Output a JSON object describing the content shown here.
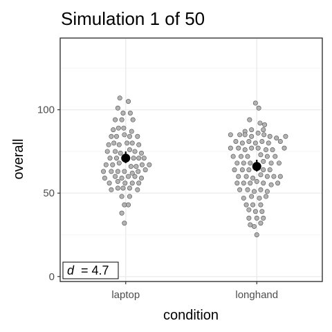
{
  "chart_data": {
    "type": "scatter",
    "title": "Simulation 1 of 50",
    "xlabel": "condition",
    "ylabel": "overall",
    "categories": [
      "laptop",
      "longhand"
    ],
    "ylim": [
      -3,
      143
    ],
    "yticks": [
      0,
      50,
      100
    ],
    "grid": true,
    "series": [
      {
        "category": "laptop",
        "mean": 71,
        "mean_low": 68,
        "mean_high": 75,
        "points": [
          {
            "dx": -0.09,
            "y": 107
          },
          {
            "dx": 0.04,
            "y": 105
          },
          {
            "dx": -0.12,
            "y": 101
          },
          {
            "dx": -0.04,
            "y": 98
          },
          {
            "dx": 0.07,
            "y": 98
          },
          {
            "dx": -0.16,
            "y": 94
          },
          {
            "dx": -0.06,
            "y": 94
          },
          {
            "dx": 0.11,
            "y": 94
          },
          {
            "dx": -0.19,
            "y": 88
          },
          {
            "dx": -0.11,
            "y": 89
          },
          {
            "dx": -0.03,
            "y": 89
          },
          {
            "dx": 0.09,
            "y": 87
          },
          {
            "dx": -0.22,
            "y": 84
          },
          {
            "dx": -0.14,
            "y": 84
          },
          {
            "dx": -0.02,
            "y": 85
          },
          {
            "dx": 0.06,
            "y": 84
          },
          {
            "dx": 0.18,
            "y": 84
          },
          {
            "dx": -0.26,
            "y": 79
          },
          {
            "dx": -0.18,
            "y": 80
          },
          {
            "dx": -0.1,
            "y": 79
          },
          {
            "dx": 0.02,
            "y": 80
          },
          {
            "dx": 0.1,
            "y": 80
          },
          {
            "dx": 0.2,
            "y": 79
          },
          {
            "dx": -0.28,
            "y": 75
          },
          {
            "dx": -0.16,
            "y": 75
          },
          {
            "dx": -0.08,
            "y": 74
          },
          {
            "dx": 0.06,
            "y": 76
          },
          {
            "dx": 0.14,
            "y": 75
          },
          {
            "dx": 0.24,
            "y": 74
          },
          {
            "dx": -0.24,
            "y": 71
          },
          {
            "dx": -0.14,
            "y": 71
          },
          {
            "dx": 0.12,
            "y": 71
          },
          {
            "dx": 0.2,
            "y": 71
          },
          {
            "dx": 0.28,
            "y": 71
          },
          {
            "dx": -0.3,
            "y": 67
          },
          {
            "dx": -0.2,
            "y": 67
          },
          {
            "dx": -0.1,
            "y": 68
          },
          {
            "dx": 0.08,
            "y": 66
          },
          {
            "dx": 0.16,
            "y": 66
          },
          {
            "dx": 0.25,
            "y": 67
          },
          {
            "dx": 0.36,
            "y": 67
          },
          {
            "dx": -0.34,
            "y": 63
          },
          {
            "dx": -0.22,
            "y": 63
          },
          {
            "dx": -0.12,
            "y": 63
          },
          {
            "dx": -0.02,
            "y": 63
          },
          {
            "dx": 0.1,
            "y": 62
          },
          {
            "dx": 0.19,
            "y": 63
          },
          {
            "dx": 0.3,
            "y": 64
          },
          {
            "dx": -0.32,
            "y": 59
          },
          {
            "dx": -0.16,
            "y": 60
          },
          {
            "dx": -0.06,
            "y": 59
          },
          {
            "dx": 0.04,
            "y": 60
          },
          {
            "dx": 0.14,
            "y": 60
          },
          {
            "dx": 0.24,
            "y": 59
          },
          {
            "dx": -0.25,
            "y": 56
          },
          {
            "dx": -0.12,
            "y": 57
          },
          {
            "dx": -0.01,
            "y": 56
          },
          {
            "dx": 0.1,
            "y": 56
          },
          {
            "dx": 0.2,
            "y": 56
          },
          {
            "dx": -0.22,
            "y": 52
          },
          {
            "dx": -0.12,
            "y": 53
          },
          {
            "dx": -0.04,
            "y": 53
          },
          {
            "dx": 0.06,
            "y": 53
          },
          {
            "dx": 0.18,
            "y": 52
          },
          {
            "dx": -0.06,
            "y": 48
          },
          {
            "dx": 0.06,
            "y": 48
          },
          {
            "dx": -0.02,
            "y": 43
          },
          {
            "dx": 0.04,
            "y": 43
          },
          {
            "dx": -0.06,
            "y": 38
          },
          {
            "dx": -0.02,
            "y": 32
          }
        ]
      },
      {
        "category": "longhand",
        "mean": 66,
        "mean_low": 63,
        "mean_high": 70,
        "points": [
          {
            "dx": -0.02,
            "y": 104
          },
          {
            "dx": 0.03,
            "y": 101
          },
          {
            "dx": -0.11,
            "y": 94
          },
          {
            "dx": 0.05,
            "y": 92
          },
          {
            "dx": 0.12,
            "y": 91
          },
          {
            "dx": -0.18,
            "y": 87
          },
          {
            "dx": -0.08,
            "y": 88
          },
          {
            "dx": 0.1,
            "y": 88
          },
          {
            "dx": -0.4,
            "y": 85
          },
          {
            "dx": -0.26,
            "y": 85
          },
          {
            "dx": -0.18,
            "y": 85
          },
          {
            "dx": -0.08,
            "y": 84
          },
          {
            "dx": 0.02,
            "y": 86
          },
          {
            "dx": 0.11,
            "y": 85
          },
          {
            "dx": 0.2,
            "y": 84
          },
          {
            "dx": 0.3,
            "y": 83
          },
          {
            "dx": 0.44,
            "y": 84
          },
          {
            "dx": -0.32,
            "y": 81
          },
          {
            "dx": -0.22,
            "y": 80
          },
          {
            "dx": -0.12,
            "y": 81
          },
          {
            "dx": -0.02,
            "y": 80
          },
          {
            "dx": 0.08,
            "y": 81
          },
          {
            "dx": 0.18,
            "y": 80
          },
          {
            "dx": 0.36,
            "y": 81
          },
          {
            "dx": -0.4,
            "y": 77
          },
          {
            "dx": -0.28,
            "y": 77
          },
          {
            "dx": -0.18,
            "y": 76
          },
          {
            "dx": -0.08,
            "y": 77
          },
          {
            "dx": 0.02,
            "y": 77
          },
          {
            "dx": 0.14,
            "y": 76
          },
          {
            "dx": 0.24,
            "y": 76
          },
          {
            "dx": 0.42,
            "y": 77
          },
          {
            "dx": -0.36,
            "y": 72
          },
          {
            "dx": -0.24,
            "y": 72
          },
          {
            "dx": -0.14,
            "y": 72
          },
          {
            "dx": 0.06,
            "y": 73
          },
          {
            "dx": 0.16,
            "y": 72
          },
          {
            "dx": 0.28,
            "y": 72
          },
          {
            "dx": -0.3,
            "y": 68
          },
          {
            "dx": -0.2,
            "y": 68
          },
          {
            "dx": -0.1,
            "y": 68
          },
          {
            "dx": 0.1,
            "y": 69
          },
          {
            "dx": 0.22,
            "y": 68
          },
          {
            "dx": 0.34,
            "y": 68
          },
          {
            "dx": -0.34,
            "y": 64
          },
          {
            "dx": -0.22,
            "y": 64
          },
          {
            "dx": -0.12,
            "y": 64
          },
          {
            "dx": 0.1,
            "y": 64
          },
          {
            "dx": 0.2,
            "y": 64
          },
          {
            "dx": -0.28,
            "y": 60
          },
          {
            "dx": -0.16,
            "y": 60
          },
          {
            "dx": -0.06,
            "y": 59
          },
          {
            "dx": 0.06,
            "y": 61
          },
          {
            "dx": 0.16,
            "y": 60
          },
          {
            "dx": 0.26,
            "y": 60
          },
          {
            "dx": 0.36,
            "y": 60
          },
          {
            "dx": -0.3,
            "y": 56
          },
          {
            "dx": -0.2,
            "y": 56
          },
          {
            "dx": -0.1,
            "y": 56
          },
          {
            "dx": 0.0,
            "y": 57
          },
          {
            "dx": 0.1,
            "y": 56
          },
          {
            "dx": 0.22,
            "y": 55
          },
          {
            "dx": 0.32,
            "y": 56
          },
          {
            "dx": -0.26,
            "y": 52
          },
          {
            "dx": -0.14,
            "y": 52
          },
          {
            "dx": -0.04,
            "y": 51
          },
          {
            "dx": 0.06,
            "y": 52
          },
          {
            "dx": 0.16,
            "y": 51
          },
          {
            "dx": -0.2,
            "y": 47
          },
          {
            "dx": -0.08,
            "y": 48
          },
          {
            "dx": 0.04,
            "y": 47
          },
          {
            "dx": 0.14,
            "y": 48
          },
          {
            "dx": -0.16,
            "y": 43
          },
          {
            "dx": -0.06,
            "y": 43
          },
          {
            "dx": 0.06,
            "y": 43
          },
          {
            "dx": -0.12,
            "y": 40
          },
          {
            "dx": -0.02,
            "y": 39
          },
          {
            "dx": 0.08,
            "y": 39
          },
          {
            "dx": -0.12,
            "y": 35
          },
          {
            "dx": 0.0,
            "y": 35
          },
          {
            "dx": 0.1,
            "y": 35
          },
          {
            "dx": -0.1,
            "y": 31
          },
          {
            "dx": -0.04,
            "y": 30
          },
          {
            "dx": 0.06,
            "y": 32
          },
          {
            "dx": 0.0,
            "y": 25
          }
        ]
      }
    ],
    "annotation": {
      "symbol": "d",
      "equals": "= 4.7"
    }
  }
}
